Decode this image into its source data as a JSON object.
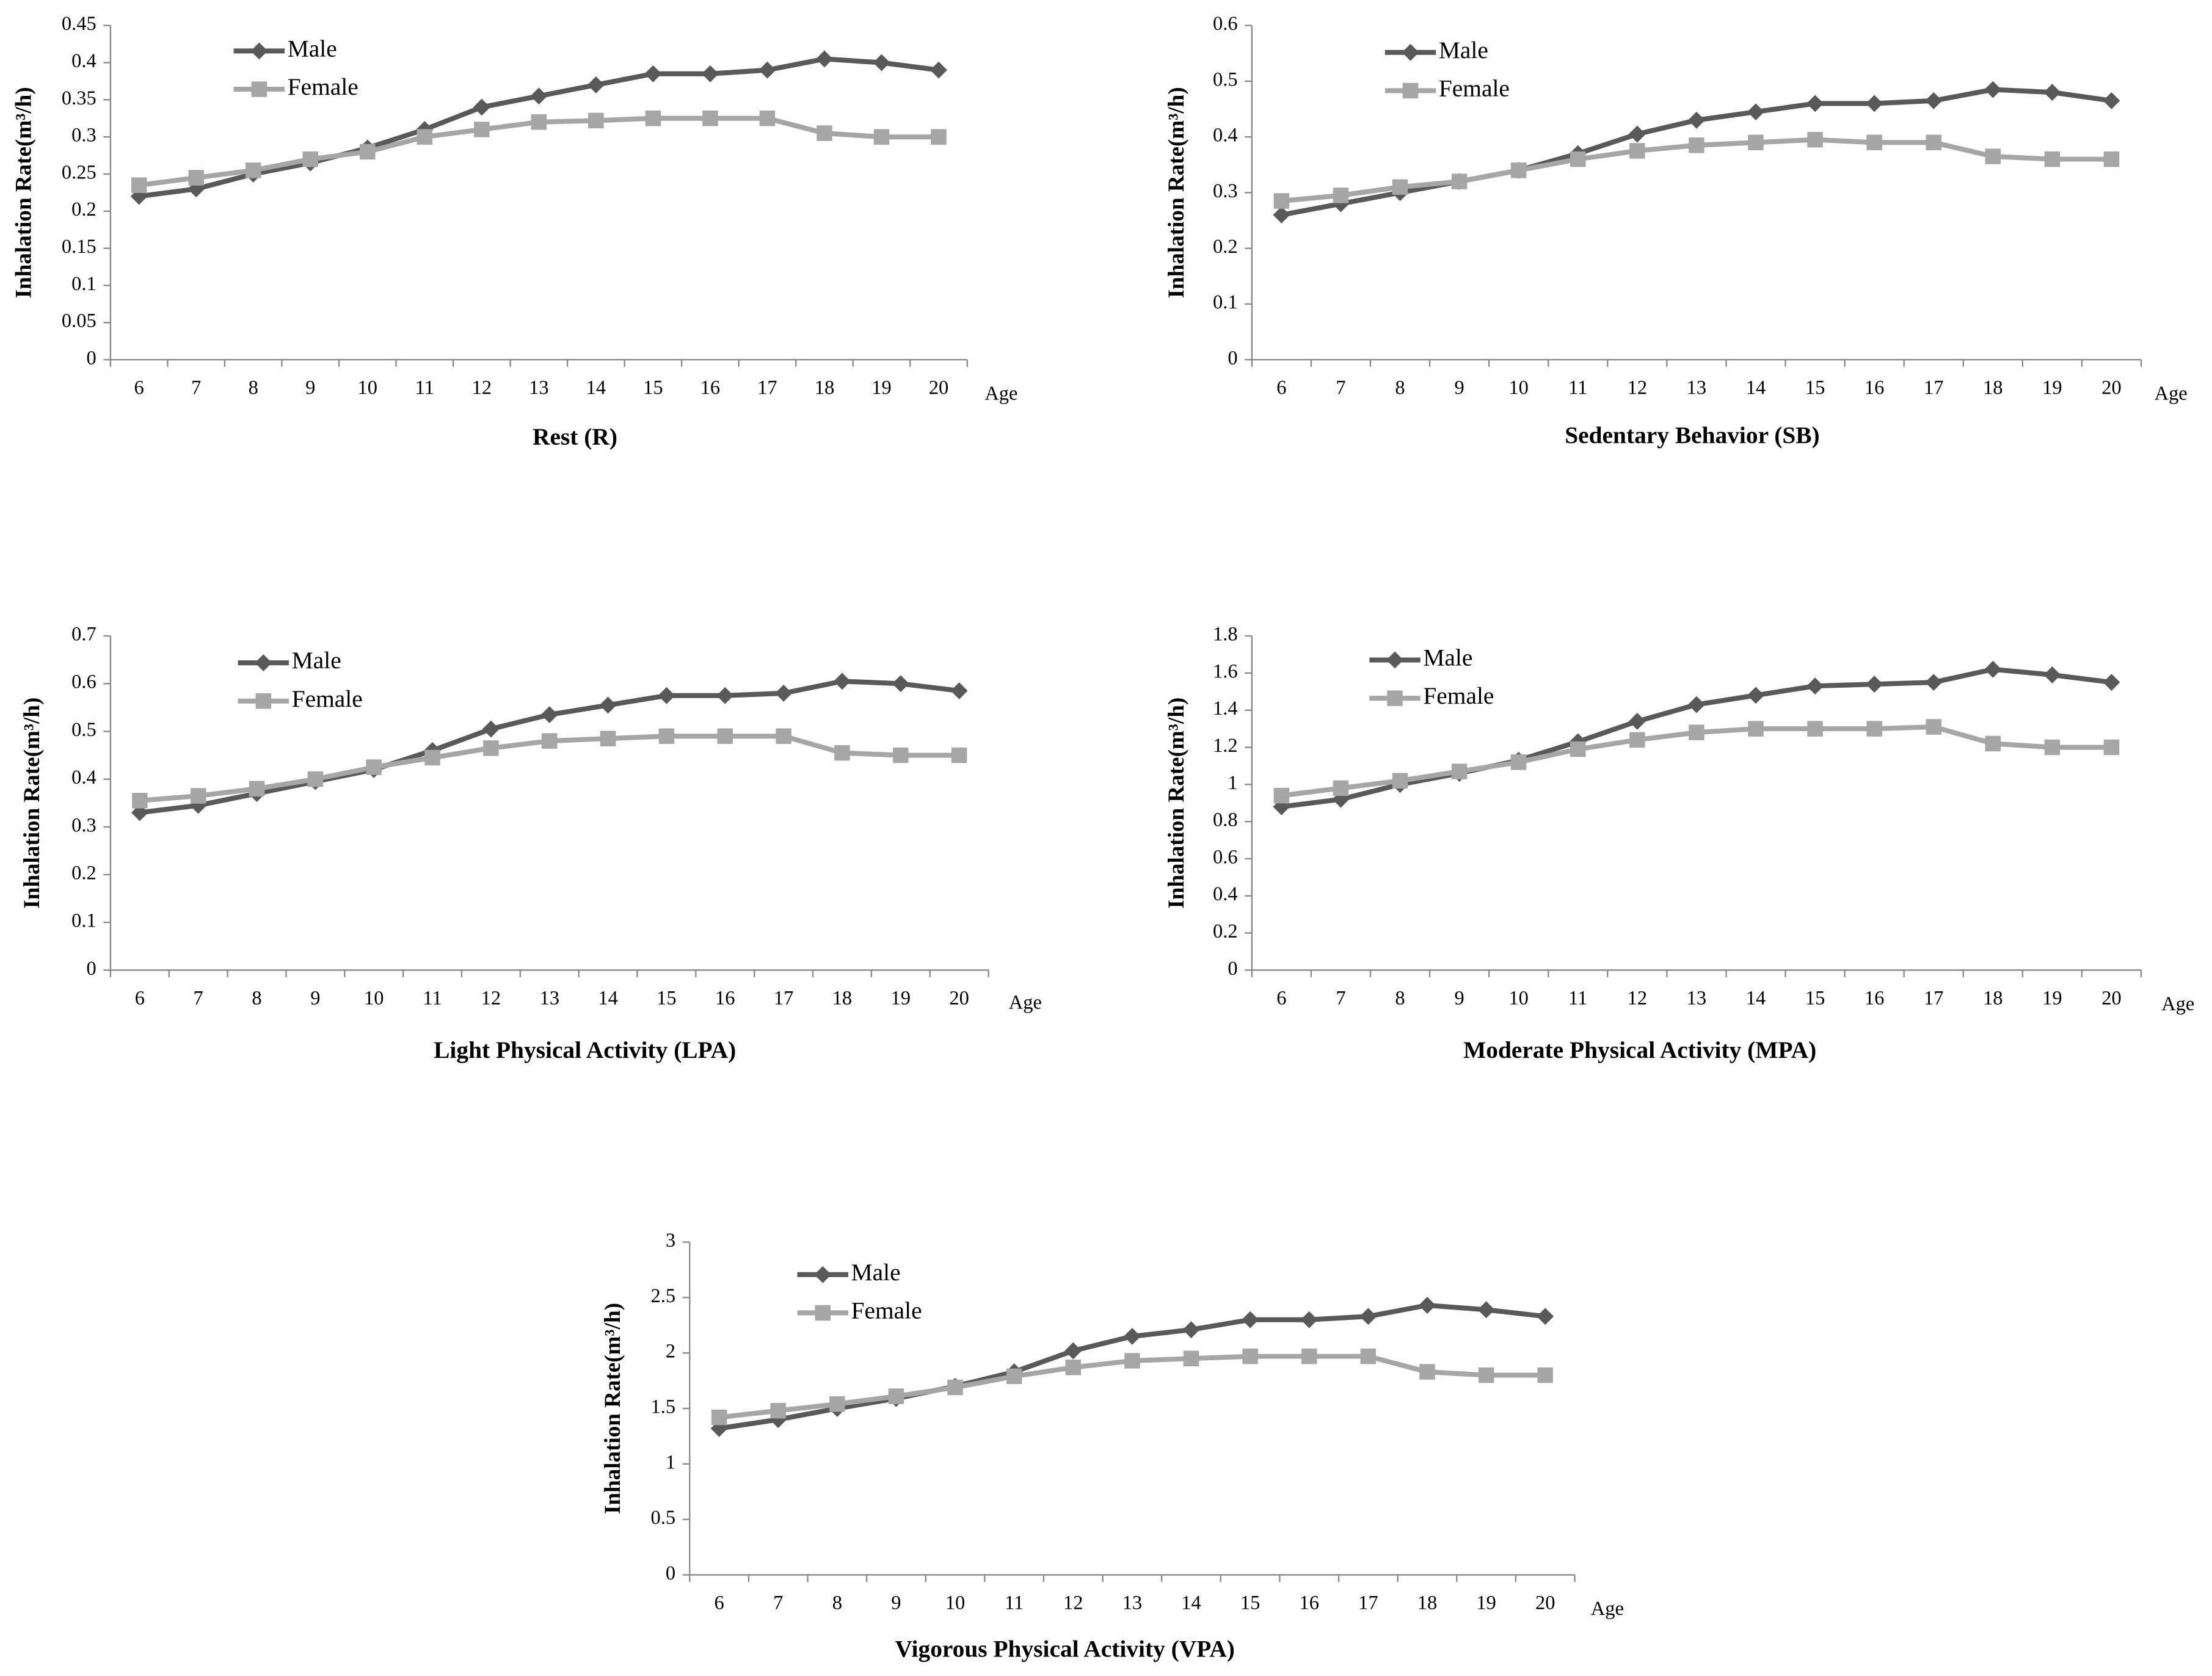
{
  "chart_data": [
    {
      "type": "line",
      "title": "Rest (R)",
      "x_label": "Age",
      "y_label": "Inhalation Rate(m³/h)",
      "categories": [
        6,
        7,
        8,
        9,
        10,
        11,
        12,
        13,
        14,
        15,
        16,
        17,
        18,
        19,
        20
      ],
      "series": [
        {
          "name": "Male",
          "color": "#595959",
          "marker": "diamond",
          "values": [
            0.22,
            0.23,
            0.25,
            0.265,
            0.285,
            0.31,
            0.34,
            0.355,
            0.37,
            0.385,
            0.385,
            0.39,
            0.405,
            0.4,
            0.39
          ]
        },
        {
          "name": "Female",
          "color": "#a6a6a6",
          "marker": "square",
          "values": [
            0.235,
            0.245,
            0.255,
            0.27,
            0.28,
            0.3,
            0.31,
            0.32,
            0.322,
            0.325,
            0.325,
            0.325,
            0.305,
            0.3,
            0.3
          ]
        }
      ],
      "ylim": [
        0,
        0.45
      ],
      "yticks": [
        0,
        0.05,
        0.1,
        0.15,
        0.2,
        0.25,
        0.3,
        0.35,
        0.4,
        0.45
      ]
    },
    {
      "type": "line",
      "title": "Sedentary Behavior (SB)",
      "x_label": "Age",
      "y_label": "Inhalation Rate(m³/h)",
      "categories": [
        6,
        7,
        8,
        9,
        10,
        11,
        12,
        13,
        14,
        15,
        16,
        17,
        18,
        19,
        20
      ],
      "series": [
        {
          "name": "Male",
          "color": "#595959",
          "marker": "diamond",
          "values": [
            0.26,
            0.28,
            0.3,
            0.32,
            0.34,
            0.37,
            0.405,
            0.43,
            0.445,
            0.46,
            0.46,
            0.465,
            0.485,
            0.48,
            0.465
          ]
        },
        {
          "name": "Female",
          "color": "#a6a6a6",
          "marker": "square",
          "values": [
            0.285,
            0.295,
            0.31,
            0.32,
            0.34,
            0.36,
            0.375,
            0.385,
            0.39,
            0.395,
            0.39,
            0.39,
            0.365,
            0.36,
            0.36
          ]
        }
      ],
      "ylim": [
        0,
        0.6
      ],
      "yticks": [
        0,
        0.1,
        0.2,
        0.3,
        0.4,
        0.5,
        0.6
      ]
    },
    {
      "type": "line",
      "title": "Light Physical Activity (LPA)",
      "x_label": "Age",
      "y_label": "Inhalation Rate(m³/h)",
      "categories": [
        6,
        7,
        8,
        9,
        10,
        11,
        12,
        13,
        14,
        15,
        16,
        17,
        18,
        19,
        20
      ],
      "series": [
        {
          "name": "Male",
          "color": "#595959",
          "marker": "diamond",
          "values": [
            0.33,
            0.345,
            0.37,
            0.395,
            0.42,
            0.46,
            0.505,
            0.535,
            0.555,
            0.575,
            0.575,
            0.58,
            0.605,
            0.6,
            0.585
          ]
        },
        {
          "name": "Female",
          "color": "#a6a6a6",
          "marker": "square",
          "values": [
            0.355,
            0.365,
            0.38,
            0.4,
            0.425,
            0.445,
            0.465,
            0.48,
            0.485,
            0.49,
            0.49,
            0.49,
            0.455,
            0.45,
            0.45
          ]
        }
      ],
      "ylim": [
        0,
        0.7
      ],
      "yticks": [
        0,
        0.1,
        0.2,
        0.3,
        0.4,
        0.5,
        0.6,
        0.7
      ]
    },
    {
      "type": "line",
      "title": "Moderate Physical Activity (MPA)",
      "x_label": "Age",
      "y_label": "Inhalation Rate(m³/h)",
      "categories": [
        6,
        7,
        8,
        9,
        10,
        11,
        12,
        13,
        14,
        15,
        16,
        17,
        18,
        19,
        20
      ],
      "series": [
        {
          "name": "Male",
          "color": "#595959",
          "marker": "diamond",
          "values": [
            0.88,
            0.92,
            1.0,
            1.06,
            1.13,
            1.23,
            1.34,
            1.43,
            1.48,
            1.53,
            1.54,
            1.55,
            1.62,
            1.59,
            1.55
          ]
        },
        {
          "name": "Female",
          "color": "#a6a6a6",
          "marker": "square",
          "values": [
            0.94,
            0.98,
            1.02,
            1.07,
            1.12,
            1.19,
            1.24,
            1.28,
            1.3,
            1.3,
            1.3,
            1.31,
            1.22,
            1.2,
            1.2
          ]
        }
      ],
      "ylim": [
        0,
        1.8
      ],
      "yticks": [
        0,
        0.2,
        0.4,
        0.6,
        0.8,
        1,
        1.2,
        1.4,
        1.6,
        1.8
      ]
    },
    {
      "type": "line",
      "title": "Vigorous Physical Activity (VPA)",
      "x_label": "Age",
      "y_label": "Inhalation  Rate(m³/h)",
      "categories": [
        6,
        7,
        8,
        9,
        10,
        11,
        12,
        13,
        14,
        15,
        16,
        17,
        18,
        19,
        20
      ],
      "series": [
        {
          "name": "Male",
          "color": "#595959",
          "marker": "diamond",
          "values": [
            1.32,
            1.4,
            1.5,
            1.59,
            1.7,
            1.83,
            2.02,
            2.15,
            2.21,
            2.3,
            2.3,
            2.33,
            2.43,
            2.39,
            2.33
          ]
        },
        {
          "name": "Female",
          "color": "#a6a6a6",
          "marker": "square",
          "values": [
            1.42,
            1.48,
            1.54,
            1.61,
            1.69,
            1.79,
            1.87,
            1.93,
            1.95,
            1.97,
            1.97,
            1.97,
            1.83,
            1.8,
            1.8
          ]
        }
      ],
      "ylim": [
        0,
        3
      ],
      "yticks": [
        0,
        0.5,
        1,
        1.5,
        2,
        2.5,
        3
      ]
    }
  ]
}
